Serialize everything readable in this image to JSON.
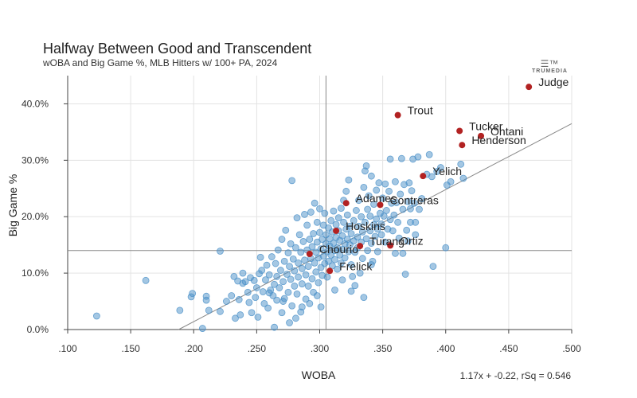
{
  "header": {
    "title": "Halfway Between Good and Transcendent",
    "subtitle": "wOBA and Big Game %, MLB Hitters w/ 100+ PA, 2024",
    "logo_text": "TRUMEDIA"
  },
  "footer": {
    "fit_text": "1.17x + -0.22, rSq = 0.546"
  },
  "colors": {
    "highlight": "#b22222",
    "points": "#4a90c8",
    "grid": "#e3e3e3",
    "refline": "#888888",
    "fitline": "#888888"
  },
  "chart_data": {
    "type": "scatter",
    "title": "Halfway Between Good and Transcendent",
    "subtitle": "wOBA and Big Game %, MLB Hitters w/ 100+ PA, 2024",
    "xlabel": "WOBA",
    "ylabel": "Big Game %",
    "xlim": [
      0.1,
      0.5
    ],
    "ylim": [
      0.0,
      0.45
    ],
    "x_ticks": [
      ".100",
      ".150",
      ".200",
      ".250",
      ".300",
      ".350",
      ".400",
      ".450",
      ".500"
    ],
    "x_tick_values": [
      0.1,
      0.15,
      0.2,
      0.25,
      0.3,
      0.35,
      0.4,
      0.45,
      0.5
    ],
    "y_ticks": [
      "0.0%",
      "10.0%",
      "20.0%",
      "30.0%",
      "40.0%"
    ],
    "y_tick_values": [
      0.0,
      0.1,
      0.2,
      0.3,
      0.4
    ],
    "grid": true,
    "reference_lines": {
      "x": 0.305,
      "y": 0.14
    },
    "fit": {
      "slope": 1.17,
      "intercept": -0.22,
      "rsq": 0.546,
      "label": "1.17x + -0.22, rSq = 0.546"
    },
    "highlighted": [
      {
        "label": "Judge",
        "x": 0.466,
        "y": 0.43
      },
      {
        "label": "Trout",
        "x": 0.362,
        "y": 0.38
      },
      {
        "label": "Tucker",
        "x": 0.411,
        "y": 0.352
      },
      {
        "label": "Ohtani",
        "x": 0.428,
        "y": 0.343
      },
      {
        "label": "Henderson",
        "x": 0.413,
        "y": 0.327
      },
      {
        "label": "Yelich",
        "x": 0.382,
        "y": 0.272
      },
      {
        "label": "Adames",
        "x": 0.321,
        "y": 0.224
      },
      {
        "label": "Contreras",
        "x": 0.348,
        "y": 0.221
      },
      {
        "label": "Hoskins",
        "x": 0.313,
        "y": 0.175
      },
      {
        "label": "Turang",
        "x": 0.332,
        "y": 0.148
      },
      {
        "label": "Ortiz",
        "x": 0.356,
        "y": 0.149
      },
      {
        "label": "Chourio",
        "x": 0.292,
        "y": 0.134
      },
      {
        "label": "Frelick",
        "x": 0.308,
        "y": 0.104
      }
    ],
    "others": [
      [
        0.123,
        0.024
      ],
      [
        0.162,
        0.087
      ],
      [
        0.189,
        0.034
      ],
      [
        0.198,
        0.058
      ],
      [
        0.199,
        0.064
      ],
      [
        0.207,
        0.002
      ],
      [
        0.21,
        0.059
      ],
      [
        0.21,
        0.052
      ],
      [
        0.212,
        0.034
      ],
      [
        0.221,
        0.139
      ],
      [
        0.221,
        0.032
      ],
      [
        0.226,
        0.05
      ],
      [
        0.23,
        0.06
      ],
      [
        0.232,
        0.094
      ],
      [
        0.233,
        0.02
      ],
      [
        0.235,
        0.086
      ],
      [
        0.236,
        0.053
      ],
      [
        0.237,
        0.026
      ],
      [
        0.239,
        0.082
      ],
      [
        0.239,
        0.1
      ],
      [
        0.241,
        0.085
      ],
      [
        0.243,
        0.066
      ],
      [
        0.244,
        0.048
      ],
      [
        0.245,
        0.092
      ],
      [
        0.246,
        0.03
      ],
      [
        0.248,
        0.087
      ],
      [
        0.249,
        0.057
      ],
      [
        0.25,
        0.074
      ],
      [
        0.251,
        0.022
      ],
      [
        0.253,
        0.128
      ],
      [
        0.254,
        0.105
      ],
      [
        0.255,
        0.067
      ],
      [
        0.256,
        0.046
      ],
      [
        0.257,
        0.088
      ],
      [
        0.258,
        0.114
      ],
      [
        0.259,
        0.038
      ],
      [
        0.26,
        0.097
      ],
      [
        0.261,
        0.07
      ],
      [
        0.262,
        0.129
      ],
      [
        0.263,
        0.06
      ],
      [
        0.264,
        0.004
      ],
      [
        0.264,
        0.08
      ],
      [
        0.265,
        0.117
      ],
      [
        0.266,
        0.052
      ],
      [
        0.266,
        0.094
      ],
      [
        0.267,
        0.141
      ],
      [
        0.268,
        0.074
      ],
      [
        0.269,
        0.105
      ],
      [
        0.27,
        0.03
      ],
      [
        0.27,
        0.16
      ],
      [
        0.271,
        0.085
      ],
      [
        0.272,
        0.121
      ],
      [
        0.272,
        0.055
      ],
      [
        0.273,
        0.176
      ],
      [
        0.274,
        0.098
      ],
      [
        0.275,
        0.136
      ],
      [
        0.275,
        0.066
      ],
      [
        0.276,
        0.112
      ],
      [
        0.277,
        0.089
      ],
      [
        0.277,
        0.152
      ],
      [
        0.278,
        0.264
      ],
      [
        0.278,
        0.042
      ],
      [
        0.279,
        0.125
      ],
      [
        0.28,
        0.077
      ],
      [
        0.28,
        0.104
      ],
      [
        0.281,
        0.145
      ],
      [
        0.282,
        0.198
      ],
      [
        0.282,
        0.063
      ],
      [
        0.283,
        0.118
      ],
      [
        0.283,
        0.093
      ],
      [
        0.284,
        0.168
      ],
      [
        0.285,
        0.031
      ],
      [
        0.285,
        0.137
      ],
      [
        0.286,
        0.108
      ],
      [
        0.286,
        0.081
      ],
      [
        0.287,
        0.156
      ],
      [
        0.288,
        0.204
      ],
      [
        0.288,
        0.123
      ],
      [
        0.289,
        0.097
      ],
      [
        0.289,
        0.054
      ],
      [
        0.29,
        0.141
      ],
      [
        0.29,
        0.185
      ],
      [
        0.291,
        0.112
      ],
      [
        0.291,
        0.077
      ],
      [
        0.292,
        0.16
      ],
      [
        0.293,
        0.208
      ],
      [
        0.293,
        0.126
      ],
      [
        0.294,
        0.09
      ],
      [
        0.294,
        0.147
      ],
      [
        0.295,
        0.17
      ],
      [
        0.295,
        0.066
      ],
      [
        0.296,
        0.118
      ],
      [
        0.296,
        0.224
      ],
      [
        0.297,
        0.137
      ],
      [
        0.297,
        0.102
      ],
      [
        0.298,
        0.19
      ],
      [
        0.298,
        0.155
      ],
      [
        0.299,
        0.083
      ],
      [
        0.299,
        0.127
      ],
      [
        0.3,
        0.172
      ],
      [
        0.3,
        0.214
      ],
      [
        0.301,
        0.143
      ],
      [
        0.301,
        0.11
      ],
      [
        0.302,
        0.096
      ],
      [
        0.302,
        0.16
      ],
      [
        0.303,
        0.185
      ],
      [
        0.303,
        0.13
      ],
      [
        0.304,
        0.206
      ],
      [
        0.304,
        0.117
      ],
      [
        0.305,
        0.152
      ],
      [
        0.305,
        0.168
      ],
      [
        0.306,
        0.138
      ],
      [
        0.306,
        0.093
      ],
      [
        0.307,
        0.18
      ],
      [
        0.307,
        0.121
      ],
      [
        0.308,
        0.161
      ],
      [
        0.308,
        0.148
      ],
      [
        0.309,
        0.193
      ],
      [
        0.309,
        0.132
      ],
      [
        0.31,
        0.113
      ],
      [
        0.31,
        0.173
      ],
      [
        0.311,
        0.153
      ],
      [
        0.311,
        0.21
      ],
      [
        0.312,
        0.14
      ],
      [
        0.312,
        0.124
      ],
      [
        0.313,
        0.186
      ],
      [
        0.313,
        0.163
      ],
      [
        0.314,
        0.107
      ],
      [
        0.314,
        0.145
      ],
      [
        0.315,
        0.198
      ],
      [
        0.315,
        0.175
      ],
      [
        0.316,
        0.132
      ],
      [
        0.316,
        0.158
      ],
      [
        0.317,
        0.215
      ],
      [
        0.317,
        0.118
      ],
      [
        0.318,
        0.166
      ],
      [
        0.318,
        0.142
      ],
      [
        0.319,
        0.19
      ],
      [
        0.319,
        0.229
      ],
      [
        0.32,
        0.152
      ],
      [
        0.32,
        0.127
      ],
      [
        0.321,
        0.178
      ],
      [
        0.321,
        0.245
      ],
      [
        0.322,
        0.16
      ],
      [
        0.322,
        0.203
      ],
      [
        0.323,
        0.138
      ],
      [
        0.323,
        0.265
      ],
      [
        0.324,
        0.183
      ],
      [
        0.324,
        0.15
      ],
      [
        0.325,
        0.115
      ],
      [
        0.325,
        0.17
      ],
      [
        0.326,
        0.094
      ],
      [
        0.327,
        0.193
      ],
      [
        0.327,
        0.157
      ],
      [
        0.328,
        0.137
      ],
      [
        0.328,
        0.078
      ],
      [
        0.329,
        0.211
      ],
      [
        0.33,
        0.164
      ],
      [
        0.33,
        0.145
      ],
      [
        0.331,
        0.229
      ],
      [
        0.331,
        0.183
      ],
      [
        0.332,
        0.1
      ],
      [
        0.333,
        0.155
      ],
      [
        0.333,
        0.2
      ],
      [
        0.334,
        0.173
      ],
      [
        0.334,
        0.126
      ],
      [
        0.335,
        0.252
      ],
      [
        0.335,
        0.057
      ],
      [
        0.336,
        0.19
      ],
      [
        0.336,
        0.281
      ],
      [
        0.337,
        0.161
      ],
      [
        0.337,
        0.29
      ],
      [
        0.338,
        0.213
      ],
      [
        0.338,
        0.14
      ],
      [
        0.339,
        0.237
      ],
      [
        0.34,
        0.175
      ],
      [
        0.34,
        0.201
      ],
      [
        0.341,
        0.153
      ],
      [
        0.341,
        0.272
      ],
      [
        0.342,
        0.121
      ],
      [
        0.343,
        0.186
      ],
      [
        0.343,
        0.222
      ],
      [
        0.344,
        0.165
      ],
      [
        0.345,
        0.247
      ],
      [
        0.345,
        0.196
      ],
      [
        0.346,
        0.178
      ],
      [
        0.346,
        0.138
      ],
      [
        0.347,
        0.26
      ],
      [
        0.348,
        0.206
      ],
      [
        0.349,
        0.187
      ],
      [
        0.349,
        0.168
      ],
      [
        0.35,
        0.233
      ],
      [
        0.351,
        0.201
      ],
      [
        0.352,
        0.155
      ],
      [
        0.352,
        0.258
      ],
      [
        0.353,
        0.211
      ],
      [
        0.354,
        0.178
      ],
      [
        0.355,
        0.245
      ],
      [
        0.356,
        0.302
      ],
      [
        0.356,
        0.195
      ],
      [
        0.357,
        0.224
      ],
      [
        0.358,
        0.175
      ],
      [
        0.359,
        0.203
      ],
      [
        0.36,
        0.262
      ],
      [
        0.361,
        0.225
      ],
      [
        0.362,
        0.19
      ],
      [
        0.363,
        0.162
      ],
      [
        0.364,
        0.24
      ],
      [
        0.365,
        0.303
      ],
      [
        0.366,
        0.213
      ],
      [
        0.367,
        0.257
      ],
      [
        0.368,
        0.098
      ],
      [
        0.369,
        0.176
      ],
      [
        0.37,
        0.227
      ],
      [
        0.371,
        0.26
      ],
      [
        0.372,
        0.214
      ],
      [
        0.373,
        0.246
      ],
      [
        0.374,
        0.302
      ],
      [
        0.375,
        0.224
      ],
      [
        0.376,
        0.19
      ],
      [
        0.378,
        0.306
      ],
      [
        0.379,
        0.213
      ],
      [
        0.381,
        0.232
      ],
      [
        0.385,
        0.275
      ],
      [
        0.387,
        0.31
      ],
      [
        0.389,
        0.271
      ],
      [
        0.39,
        0.112
      ],
      [
        0.393,
        0.28
      ],
      [
        0.396,
        0.287
      ],
      [
        0.4,
        0.145
      ],
      [
        0.401,
        0.256
      ],
      [
        0.404,
        0.262
      ],
      [
        0.412,
        0.293
      ],
      [
        0.414,
        0.268
      ],
      [
        0.37,
        0.157
      ],
      [
        0.366,
        0.135
      ],
      [
        0.376,
        0.168
      ],
      [
        0.372,
        0.19
      ],
      [
        0.36,
        0.135
      ],
      [
        0.341,
        0.115
      ],
      [
        0.318,
        0.088
      ],
      [
        0.325,
        0.068
      ],
      [
        0.298,
        0.06
      ],
      [
        0.292,
        0.046
      ],
      [
        0.286,
        0.04
      ],
      [
        0.281,
        0.02
      ],
      [
        0.276,
        0.012
      ],
      [
        0.271,
        0.05
      ],
      [
        0.301,
        0.04
      ],
      [
        0.312,
        0.07
      ],
      [
        0.26,
        0.065
      ],
      [
        0.252,
        0.099
      ]
    ]
  }
}
